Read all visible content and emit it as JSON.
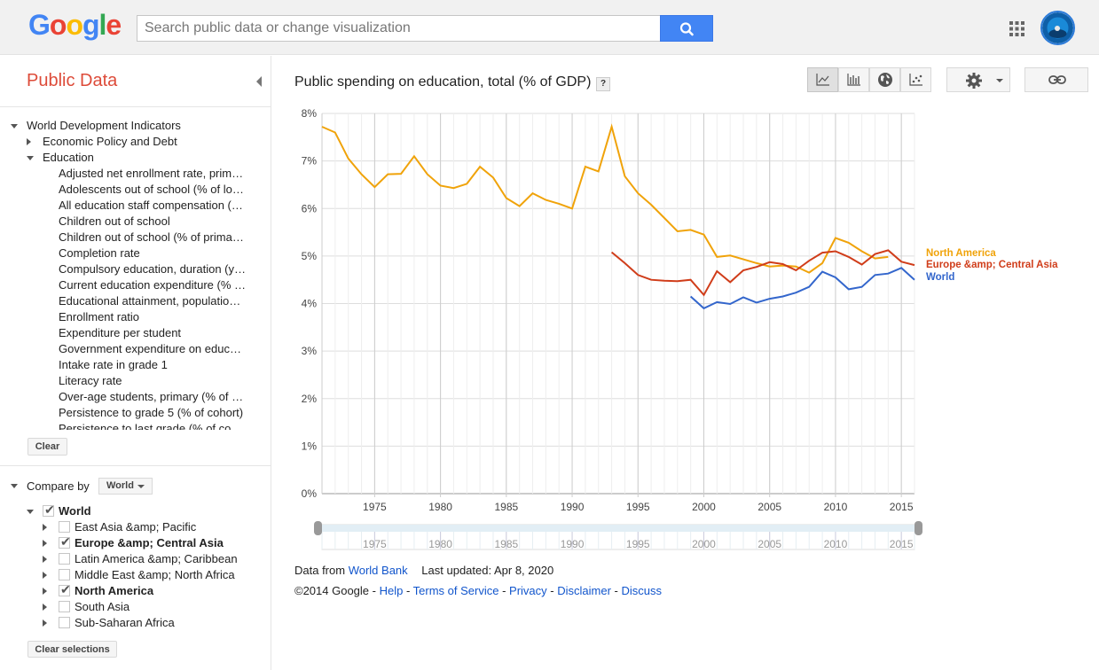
{
  "header": {
    "logo": [
      "G",
      "o",
      "o",
      "g",
      "l",
      "e"
    ],
    "logo_colors": [
      "#4285f4",
      "#ea4335",
      "#fbbc05",
      "#4285f4",
      "#34a853",
      "#ea4335"
    ],
    "search_placeholder": "Search public data or change visualization"
  },
  "sidebar": {
    "title": "Public Data",
    "tree": [
      {
        "label": "World Development Indicators",
        "level": 0,
        "arrow": "down"
      },
      {
        "label": "Economic Policy and Debt",
        "level": 1,
        "arrow": "right"
      },
      {
        "label": "Education",
        "level": 1,
        "arrow": "down"
      },
      {
        "label": "Adjusted net enrollment rate, prim…",
        "level": 2,
        "arrow": ""
      },
      {
        "label": "Adolescents out of school (% of lo…",
        "level": 2,
        "arrow": ""
      },
      {
        "label": "All education staff compensation (…",
        "level": 2,
        "arrow": ""
      },
      {
        "label": "Children out of school",
        "level": 2,
        "arrow": ""
      },
      {
        "label": "Children out of school (% of prima…",
        "level": 2,
        "arrow": ""
      },
      {
        "label": "Completion rate",
        "level": 2,
        "arrow": ""
      },
      {
        "label": "Compulsory education, duration (y…",
        "level": 2,
        "arrow": ""
      },
      {
        "label": "Current education expenditure (% …",
        "level": 2,
        "arrow": ""
      },
      {
        "label": "Educational attainment, populatio…",
        "level": 2,
        "arrow": ""
      },
      {
        "label": "Enrollment ratio",
        "level": 2,
        "arrow": ""
      },
      {
        "label": "Expenditure per student",
        "level": 2,
        "arrow": ""
      },
      {
        "label": "Government expenditure on educ…",
        "level": 2,
        "arrow": ""
      },
      {
        "label": "Intake rate in grade 1",
        "level": 2,
        "arrow": ""
      },
      {
        "label": "Literacy rate",
        "level": 2,
        "arrow": ""
      },
      {
        "label": "Over-age students, primary (% of …",
        "level": 2,
        "arrow": ""
      },
      {
        "label": "Persistence to grade 5 (% of cohort)",
        "level": 2,
        "arrow": ""
      },
      {
        "label": "Persistence to last grade (% of co…",
        "level": 2,
        "arrow": ""
      }
    ],
    "clear_label": "Clear",
    "compare_label": "Compare by",
    "compare_value": "World",
    "countries": [
      {
        "label": "World",
        "checked": true,
        "bold": true,
        "root": true
      },
      {
        "label": "East Asia &amp; Pacific",
        "checked": false,
        "bold": false
      },
      {
        "label": "Europe &amp; Central Asia",
        "checked": true,
        "bold": true
      },
      {
        "label": "Latin America &amp; Caribbean",
        "checked": false,
        "bold": false
      },
      {
        "label": "Middle East &amp; North Africa",
        "checked": false,
        "bold": false
      },
      {
        "label": "North America",
        "checked": true,
        "bold": true
      },
      {
        "label": "South Asia",
        "checked": false,
        "bold": false
      },
      {
        "label": "Sub-Saharan Africa",
        "checked": false,
        "bold": false
      }
    ],
    "clear_selections_label": "Clear selections"
  },
  "main": {
    "title": "Public spending on education, total (% of GDP)",
    "help": "?"
  },
  "chart_data": {
    "type": "line",
    "xlim": [
      1971,
      2016
    ],
    "ylim": [
      0,
      8
    ],
    "y_ticks": [
      "0%",
      "1%",
      "2%",
      "3%",
      "4%",
      "5%",
      "6%",
      "7%",
      "8%"
    ],
    "x_ticks": [
      "1975",
      "1980",
      "1985",
      "1990",
      "1995",
      "2000",
      "2005",
      "2010",
      "2015"
    ],
    "timeline_ticks": [
      "1975",
      "1980",
      "1985",
      "1990",
      "1995",
      "2000",
      "2005",
      "2010",
      "2015"
    ],
    "series": [
      {
        "name": "North America",
        "color": "#f0a30a",
        "points": [
          [
            1971,
            7.72
          ],
          [
            1972,
            7.6
          ],
          [
            1973,
            7.05
          ],
          [
            1974,
            6.72
          ],
          [
            1975,
            6.45
          ],
          [
            1976,
            6.72
          ],
          [
            1977,
            6.73
          ],
          [
            1978,
            7.1
          ],
          [
            1979,
            6.72
          ],
          [
            1980,
            6.48
          ],
          [
            1981,
            6.43
          ],
          [
            1982,
            6.52
          ],
          [
            1983,
            6.88
          ],
          [
            1984,
            6.65
          ],
          [
            1985,
            6.22
          ],
          [
            1986,
            6.05
          ],
          [
            1987,
            6.32
          ],
          [
            1988,
            6.18
          ],
          [
            1989,
            6.1
          ],
          [
            1990,
            6.0
          ],
          [
            1991,
            6.88
          ],
          [
            1992,
            6.78
          ],
          [
            1993,
            7.72
          ],
          [
            1994,
            6.68
          ],
          [
            1995,
            6.32
          ],
          [
            1996,
            6.08
          ],
          [
            1997,
            5.8
          ],
          [
            1998,
            5.52
          ],
          [
            1999,
            5.55
          ],
          [
            2000,
            5.45
          ],
          [
            2001,
            4.98
          ],
          [
            2002,
            5.01
          ],
          [
            2003,
            4.93
          ],
          [
            2004,
            4.85
          ],
          [
            2005,
            4.78
          ],
          [
            2006,
            4.8
          ],
          [
            2007,
            4.78
          ],
          [
            2008,
            4.65
          ],
          [
            2009,
            4.85
          ],
          [
            2010,
            5.38
          ],
          [
            2011,
            5.28
          ],
          [
            2012,
            5.1
          ],
          [
            2013,
            4.95
          ],
          [
            2014,
            4.98
          ]
        ]
      },
      {
        "name": "Europe &amp; Central Asia",
        "color": "#d03d1a",
        "points": [
          [
            1993,
            5.08
          ],
          [
            1994,
            4.85
          ],
          [
            1995,
            4.6
          ],
          [
            1996,
            4.5
          ],
          [
            1997,
            4.48
          ],
          [
            1998,
            4.47
          ],
          [
            1999,
            4.5
          ],
          [
            2000,
            4.18
          ],
          [
            2001,
            4.68
          ],
          [
            2002,
            4.45
          ],
          [
            2003,
            4.7
          ],
          [
            2004,
            4.77
          ],
          [
            2005,
            4.87
          ],
          [
            2006,
            4.83
          ],
          [
            2007,
            4.7
          ],
          [
            2008,
            4.9
          ],
          [
            2009,
            5.07
          ],
          [
            2010,
            5.1
          ],
          [
            2011,
            4.98
          ],
          [
            2012,
            4.82
          ],
          [
            2013,
            5.04
          ],
          [
            2014,
            5.12
          ],
          [
            2015,
            4.88
          ],
          [
            2016,
            4.81
          ]
        ]
      },
      {
        "name": "World",
        "color": "#3366cc",
        "points": [
          [
            1999,
            4.15
          ],
          [
            2000,
            3.9
          ],
          [
            2001,
            4.03
          ],
          [
            2002,
            3.99
          ],
          [
            2003,
            4.13
          ],
          [
            2004,
            4.02
          ],
          [
            2005,
            4.1
          ],
          [
            2006,
            4.15
          ],
          [
            2007,
            4.23
          ],
          [
            2008,
            4.35
          ],
          [
            2009,
            4.67
          ],
          [
            2010,
            4.55
          ],
          [
            2011,
            4.3
          ],
          [
            2012,
            4.35
          ],
          [
            2013,
            4.6
          ],
          [
            2014,
            4.63
          ],
          [
            2015,
            4.75
          ],
          [
            2016,
            4.5
          ]
        ]
      }
    ],
    "grid": true,
    "legend": "right"
  },
  "footer": {
    "data_from_label": "Data from",
    "data_source": "World Bank",
    "last_updated": "Last updated: Apr 8, 2020",
    "copyright": "©2014 Google",
    "links": [
      "Help",
      "Terms of Service",
      "Privacy",
      "Disclaimer",
      "Discuss"
    ],
    "sep": " - "
  }
}
